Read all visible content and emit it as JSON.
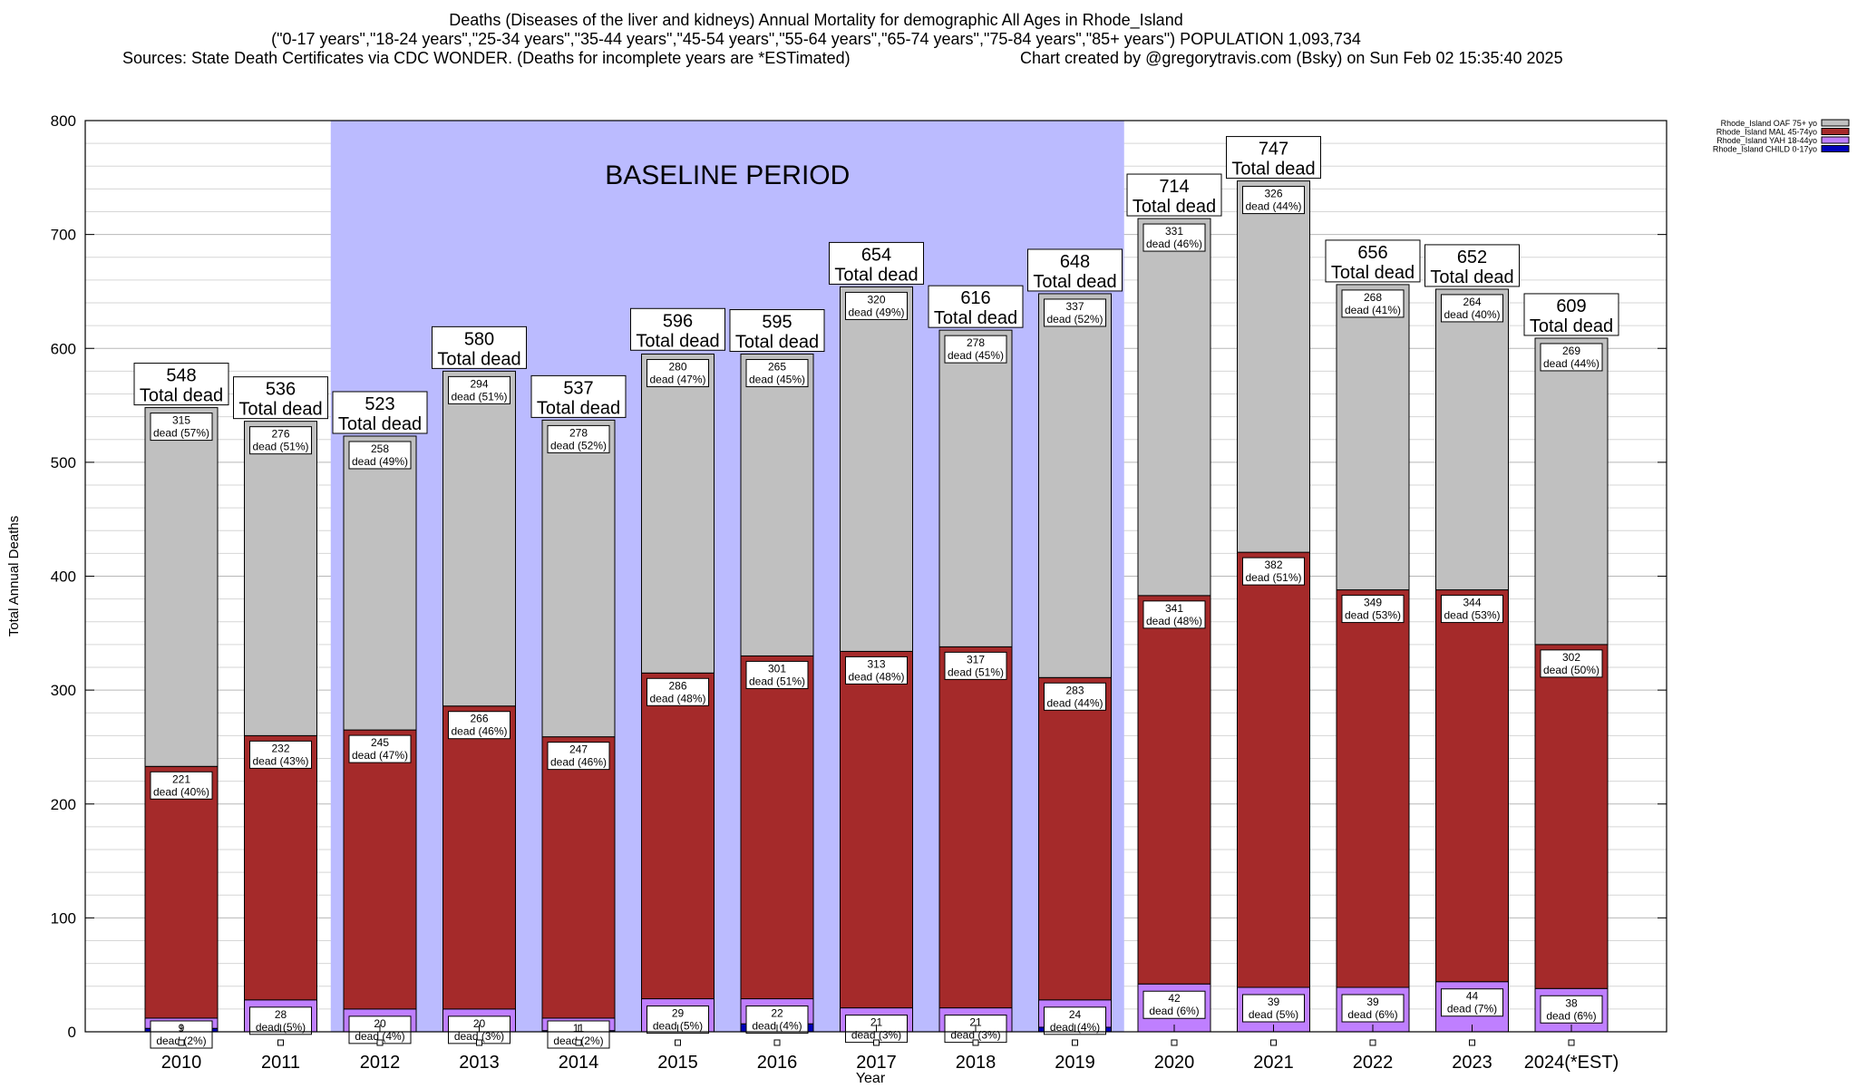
{
  "header": {
    "title": "Deaths (Diseases of the liver and kidneys) Annual Mortality for demographic All Ages in Rhode_Island",
    "subtitle": "(\"0-17 years\",\"18-24 years\",\"25-34 years\",\"35-44 years\",\"45-54 years\",\"55-64 years\",\"65-74 years\",\"75-84 years\",\"85+ years\") POPULATION 1,093,734",
    "sources": "Sources: State Death Certificates via CDC WONDER. (Deaths for incomplete years are *ESTimated)",
    "credit": "Chart created by @gregorytravis.com (Bsky) on Sun Feb 02 15:35:40 2025"
  },
  "chart_data": {
    "type": "bar",
    "stacked": true,
    "xlabel": "Year",
    "ylabel": "Total Annual Deaths",
    "ylim": [
      0,
      800
    ],
    "yticks": [
      0,
      100,
      200,
      300,
      400,
      500,
      600,
      700,
      800
    ],
    "grid": true,
    "legend_position": "top-right",
    "categories": [
      "2010",
      "2011",
      "2012",
      "2013",
      "2014",
      "2015",
      "2016",
      "2017",
      "2018",
      "2019",
      "2020",
      "2021",
      "2022",
      "2023",
      "2024(*EST)"
    ],
    "baseline": {
      "label": "BASELINE PERIOD",
      "from": "2012",
      "to": "2019",
      "color": "#bbbbff"
    },
    "total_label_suffix": "Total dead",
    "segment_label_prefix": "dead",
    "series": [
      {
        "name": "Rhode_Island CHILD 0-17yo",
        "color": "#0000bb",
        "values": [
          3,
          0,
          0,
          0,
          1,
          0,
          7,
          0,
          0,
          4,
          0,
          0,
          0,
          0,
          0
        ],
        "labels": [
          "",
          "",
          "",
          "",
          "",
          "",
          "",
          "",
          "",
          "",
          "",
          "",
          "",
          "",
          ""
        ]
      },
      {
        "name": "Rhode_Island YAH 18-44yo",
        "color": "#bf7fff",
        "values": [
          9,
          28,
          20,
          20,
          11,
          29,
          22,
          21,
          21,
          24,
          42,
          39,
          39,
          44,
          38
        ],
        "labels": [
          "(2%)",
          "(5%)",
          "(4%)",
          "(3%)",
          "(2%)",
          "(5%)",
          "(4%)",
          "(3%)",
          "(3%)",
          "(4%)",
          "(6%)",
          "(5%)",
          "(6%)",
          "(7%)",
          "(6%)"
        ]
      },
      {
        "name": "Rhode_Island MAL 45-74yo",
        "color": "#a52a2a",
        "values": [
          221,
          232,
          245,
          266,
          247,
          286,
          301,
          313,
          317,
          283,
          341,
          382,
          349,
          344,
          302
        ],
        "labels": [
          "(40%)",
          "(43%)",
          "(47%)",
          "(46%)",
          "(46%)",
          "(48%)",
          "(51%)",
          "(48%)",
          "(51%)",
          "(44%)",
          "(48%)",
          "(51%)",
          "(53%)",
          "(53%)",
          "(50%)"
        ]
      },
      {
        "name": "Rhode_Island OAF 75+ yo",
        "color": "#c0c0c0",
        "values": [
          315,
          276,
          258,
          294,
          278,
          280,
          265,
          320,
          278,
          337,
          331,
          326,
          268,
          264,
          269
        ],
        "labels": [
          "(57%)",
          "(51%)",
          "(49%)",
          "(51%)",
          "(52%)",
          "(47%)",
          "(45%)",
          "(49%)",
          "(45%)",
          "(52%)",
          "(46%)",
          "(44%)",
          "(41%)",
          "(40%)",
          "(44%)"
        ]
      }
    ],
    "totals": [
      548,
      536,
      523,
      580,
      537,
      596,
      595,
      654,
      616,
      648,
      714,
      747,
      656,
      652,
      609
    ]
  }
}
